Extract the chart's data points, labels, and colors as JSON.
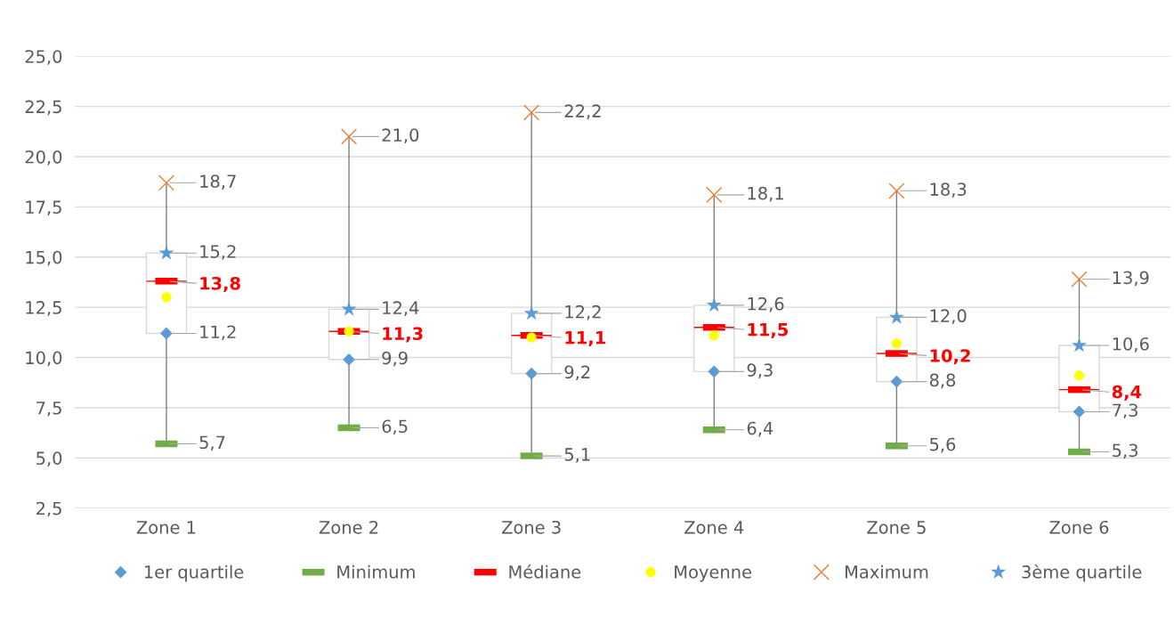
{
  "chart_data": {
    "type": "box",
    "categories": [
      "Zone 1",
      "Zone 2",
      "Zone 3",
      "Zone 4",
      "Zone 5",
      "Zone 6"
    ],
    "boxes": [
      {
        "low": 5.7,
        "q1": 11.2,
        "median": 13.8,
        "q3": 15.2,
        "high": 18.7
      },
      {
        "low": 6.5,
        "q1": 9.9,
        "median": 11.3,
        "q3": 12.4,
        "high": 21.0
      },
      {
        "low": 5.1,
        "q1": 9.2,
        "median": 11.1,
        "q3": 12.2,
        "high": 22.2
      },
      {
        "low": 6.4,
        "q1": 9.3,
        "median": 11.5,
        "q3": 12.6,
        "high": 18.1
      },
      {
        "low": 5.6,
        "q1": 8.8,
        "median": 10.2,
        "q3": 12.0,
        "high": 18.3
      },
      {
        "low": 5.3,
        "q1": 7.3,
        "median": 8.4,
        "q3": 10.6,
        "high": 13.9
      }
    ],
    "series": [
      {
        "name": "1er quartile",
        "type": "scatter",
        "marker": "diamond",
        "color": "#5b9bd5",
        "values": [
          11.2,
          9.9,
          9.2,
          9.3,
          8.8,
          7.3
        ],
        "value_labels": [
          "11,2",
          "9,9",
          "9,2",
          "9,3",
          "8,8",
          "7,3"
        ]
      },
      {
        "name": "Minimum",
        "type": "scatter",
        "marker": "square",
        "color": "#70ad47",
        "values": [
          5.7,
          6.5,
          5.1,
          6.4,
          5.6,
          5.3
        ],
        "value_labels": [
          "5,7",
          "6,5",
          "5,1",
          "6,4",
          "5,6",
          "5,3"
        ]
      },
      {
        "name": "Médiane",
        "type": "scatter",
        "marker": "square",
        "color": "#ff0000",
        "values": [
          13.8,
          11.3,
          11.1,
          11.5,
          10.2,
          8.4
        ],
        "value_labels": [
          "13,8",
          "11,3",
          "11,1",
          "11,5",
          "10,2",
          "8,4"
        ]
      },
      {
        "name": "Moyenne",
        "type": "scatter",
        "marker": "circle",
        "color": "#ffff00",
        "values": [
          13.0,
          11.3,
          11.0,
          11.1,
          10.7,
          9.1
        ]
      },
      {
        "name": "Maximum",
        "type": "scatter",
        "marker": "cross",
        "color": "#ed7d31",
        "values": [
          18.7,
          21.0,
          22.2,
          18.1,
          18.3,
          13.9
        ],
        "value_labels": [
          "18,7",
          "21,0",
          "22,2",
          "18,1",
          "18,3",
          "13,9"
        ]
      },
      {
        "name": "3ème quartile",
        "type": "scatter",
        "marker": "star",
        "color": "#5b9bd5",
        "values": [
          15.2,
          12.4,
          12.2,
          12.6,
          12.0,
          10.6
        ],
        "value_labels": [
          "15,2",
          "12,4",
          "12,2",
          "12,6",
          "12,0",
          "10,6"
        ]
      }
    ],
    "ylim": [
      2.5,
      25
    ],
    "yticks": [
      {
        "value": 2.5,
        "label": "2,5"
      },
      {
        "value": 5,
        "label": "5,0"
      },
      {
        "value": 7.5,
        "label": "7,5"
      },
      {
        "value": 10,
        "label": "10,0"
      },
      {
        "value": 12.5,
        "label": "12,5"
      },
      {
        "value": 15,
        "label": "15,0"
      },
      {
        "value": 17.5,
        "label": "17,5"
      },
      {
        "value": 20,
        "label": "20,0"
      },
      {
        "value": 22.5,
        "label": "22,5"
      },
      {
        "value": 25,
        "label": "25,0"
      }
    ],
    "grid": "y",
    "legend": "bottom"
  }
}
